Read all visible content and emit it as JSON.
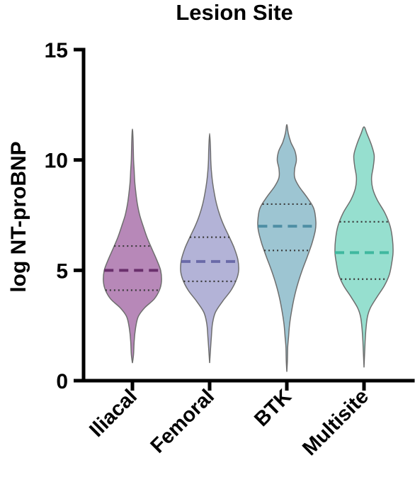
{
  "chart_data": {
    "type": "violin",
    "title": "Lesion Site",
    "xlabel": "",
    "ylabel": "log NT-proBNP",
    "ylim": [
      0,
      15
    ],
    "yticks": [
      "0",
      "5",
      "10",
      "15"
    ],
    "categories": [
      "Iliacal",
      "Femoral",
      "BTK",
      "Multisite"
    ],
    "grid": false,
    "series": [
      {
        "category": "Iliacal",
        "color": "#9b5a9c",
        "median_color": "#6a2f6c",
        "min": 0.8,
        "max": 11.4,
        "q1": 4.1,
        "median": 5.0,
        "q3": 6.1,
        "density_profile": [
          [
            0.8,
            0.0
          ],
          [
            1.2,
            0.04
          ],
          [
            1.8,
            0.06
          ],
          [
            2.4,
            0.11
          ],
          [
            2.9,
            0.2
          ],
          [
            3.3,
            0.42
          ],
          [
            3.7,
            0.75
          ],
          [
            4.1,
            0.93
          ],
          [
            4.5,
            1.0
          ],
          [
            5.0,
            0.97
          ],
          [
            5.5,
            0.83
          ],
          [
            6.0,
            0.66
          ],
          [
            6.5,
            0.5
          ],
          [
            7.0,
            0.37
          ],
          [
            7.5,
            0.25
          ],
          [
            8.0,
            0.17
          ],
          [
            8.5,
            0.12
          ],
          [
            9.0,
            0.08
          ],
          [
            9.5,
            0.06
          ],
          [
            10.0,
            0.04
          ],
          [
            10.5,
            0.03
          ],
          [
            11.0,
            0.02
          ],
          [
            11.4,
            0.0
          ]
        ]
      },
      {
        "category": "Femoral",
        "color": "#9596c8",
        "median_color": "#6a6aa8",
        "min": 0.8,
        "max": 11.2,
        "q1": 4.5,
        "median": 5.4,
        "q3": 6.5,
        "density_profile": [
          [
            0.8,
            0.0
          ],
          [
            1.4,
            0.03
          ],
          [
            2.0,
            0.06
          ],
          [
            2.6,
            0.1
          ],
          [
            3.1,
            0.2
          ],
          [
            3.6,
            0.45
          ],
          [
            4.1,
            0.74
          ],
          [
            4.6,
            0.93
          ],
          [
            5.0,
            1.0
          ],
          [
            5.5,
            0.97
          ],
          [
            6.0,
            0.85
          ],
          [
            6.5,
            0.68
          ],
          [
            7.0,
            0.5
          ],
          [
            7.5,
            0.35
          ],
          [
            8.0,
            0.24
          ],
          [
            8.5,
            0.16
          ],
          [
            9.0,
            0.1
          ],
          [
            9.5,
            0.06
          ],
          [
            10.0,
            0.04
          ],
          [
            10.5,
            0.03
          ],
          [
            11.2,
            0.0
          ]
        ]
      },
      {
        "category": "BTK",
        "color": "#77aec0",
        "median_color": "#4f8fa5",
        "min": 0.4,
        "max": 11.6,
        "q1": 5.9,
        "median": 7.0,
        "q3": 8.0,
        "density_profile": [
          [
            0.4,
            0.0
          ],
          [
            0.9,
            0.02
          ],
          [
            1.5,
            0.03
          ],
          [
            2.0,
            0.06
          ],
          [
            2.6,
            0.1
          ],
          [
            3.2,
            0.17
          ],
          [
            3.8,
            0.26
          ],
          [
            4.4,
            0.38
          ],
          [
            5.0,
            0.53
          ],
          [
            5.6,
            0.7
          ],
          [
            6.2,
            0.86
          ],
          [
            6.8,
            0.98
          ],
          [
            7.2,
            1.0
          ],
          [
            7.8,
            0.93
          ],
          [
            8.3,
            0.7
          ],
          [
            8.8,
            0.42
          ],
          [
            9.2,
            0.27
          ],
          [
            9.6,
            0.27
          ],
          [
            10.0,
            0.33
          ],
          [
            10.4,
            0.28
          ],
          [
            10.8,
            0.14
          ],
          [
            11.2,
            0.05
          ],
          [
            11.6,
            0.0
          ]
        ]
      },
      {
        "category": "Multisite",
        "color": "#6ed3bd",
        "median_color": "#3fb89f",
        "min": 0.6,
        "max": 11.5,
        "q1": 4.6,
        "median": 5.8,
        "q3": 7.2,
        "density_profile": [
          [
            0.6,
            0.0
          ],
          [
            1.2,
            0.02
          ],
          [
            1.8,
            0.04
          ],
          [
            2.4,
            0.07
          ],
          [
            2.9,
            0.12
          ],
          [
            3.3,
            0.22
          ],
          [
            3.8,
            0.45
          ],
          [
            4.3,
            0.7
          ],
          [
            4.8,
            0.87
          ],
          [
            5.3,
            0.95
          ],
          [
            5.8,
            1.0
          ],
          [
            6.4,
            0.98
          ],
          [
            7.0,
            0.9
          ],
          [
            7.6,
            0.72
          ],
          [
            8.2,
            0.45
          ],
          [
            8.7,
            0.3
          ],
          [
            9.2,
            0.26
          ],
          [
            9.7,
            0.32
          ],
          [
            10.2,
            0.35
          ],
          [
            10.7,
            0.25
          ],
          [
            11.2,
            0.1
          ],
          [
            11.5,
            0.0
          ]
        ]
      }
    ]
  }
}
